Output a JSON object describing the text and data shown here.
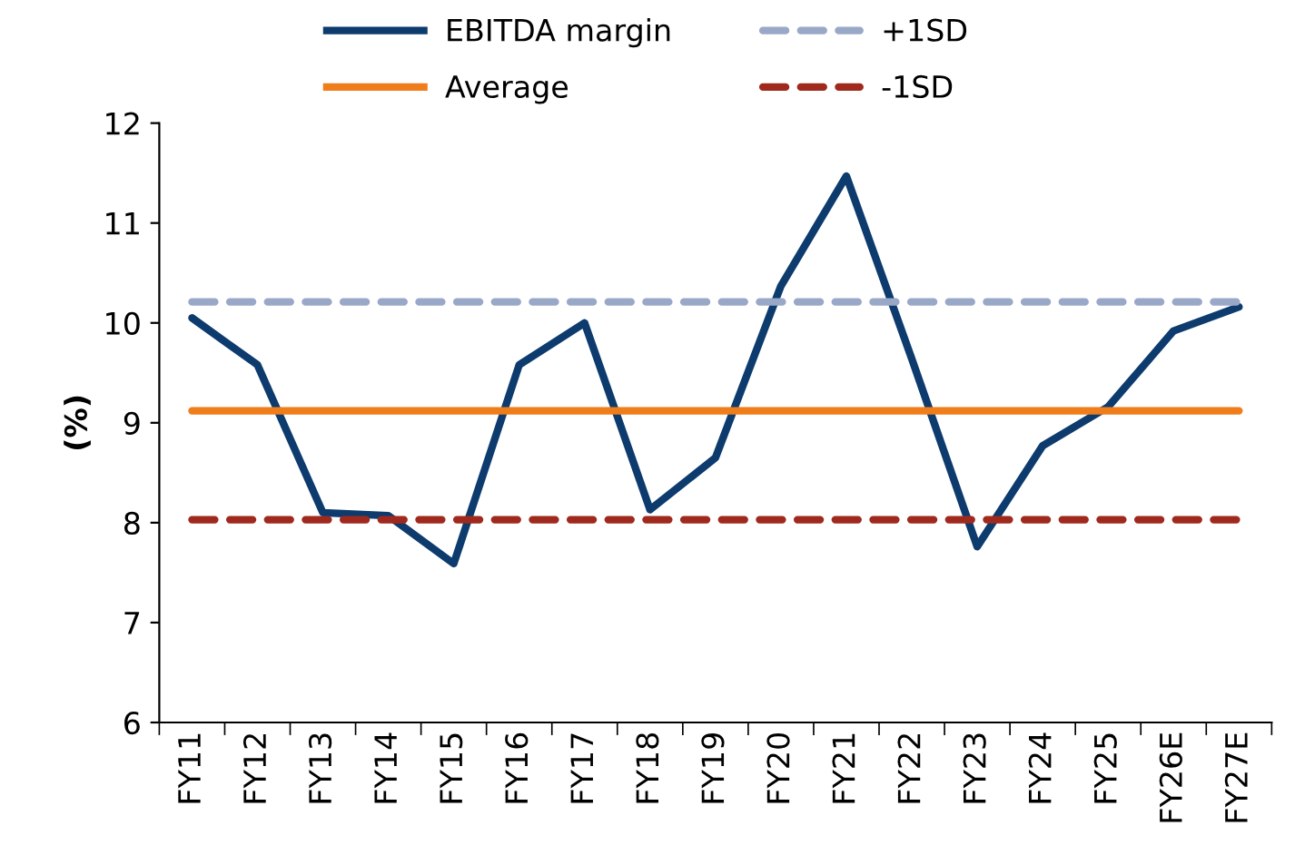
{
  "chart_data": {
    "type": "line",
    "ylabel": "(%)",
    "categories": [
      "FY11",
      "FY12",
      "FY13",
      "FY14",
      "FY15",
      "FY16",
      "FY17",
      "FY18",
      "FY19",
      "FY20",
      "FY21",
      "FY22",
      "FY23",
      "FY24",
      "FY25",
      "FY26E",
      "FY27E"
    ],
    "series": [
      {
        "name": "EBITDA margin",
        "color": "#0d3b6e",
        "line_style": "solid",
        "values": [
          10.05,
          9.58,
          8.1,
          8.07,
          7.59,
          9.58,
          10.0,
          8.13,
          8.65,
          10.37,
          11.47,
          9.64,
          7.76,
          8.77,
          9.16,
          9.92,
          10.16
        ]
      },
      {
        "name": "Average",
        "color": "#ef7d1a",
        "line_style": "solid",
        "values": [
          9.12,
          9.12,
          9.12,
          9.12,
          9.12,
          9.12,
          9.12,
          9.12,
          9.12,
          9.12,
          9.12,
          9.12,
          9.12,
          9.12,
          9.12,
          9.12,
          9.12
        ]
      },
      {
        "name": "+1SD",
        "color": "#9aa8c8",
        "line_style": "dashed",
        "values": [
          10.21,
          10.21,
          10.21,
          10.21,
          10.21,
          10.21,
          10.21,
          10.21,
          10.21,
          10.21,
          10.21,
          10.21,
          10.21,
          10.21,
          10.21,
          10.21,
          10.21
        ]
      },
      {
        "name": "-1SD",
        "color": "#a0291e",
        "line_style": "dashed",
        "values": [
          8.03,
          8.03,
          8.03,
          8.03,
          8.03,
          8.03,
          8.03,
          8.03,
          8.03,
          8.03,
          8.03,
          8.03,
          8.03,
          8.03,
          8.03,
          8.03,
          8.03
        ]
      }
    ],
    "ylim": [
      6,
      12
    ],
    "yticks": [
      6,
      7,
      8,
      9,
      10,
      11,
      12
    ],
    "grid": false,
    "legend": "top",
    "marker": "none"
  }
}
